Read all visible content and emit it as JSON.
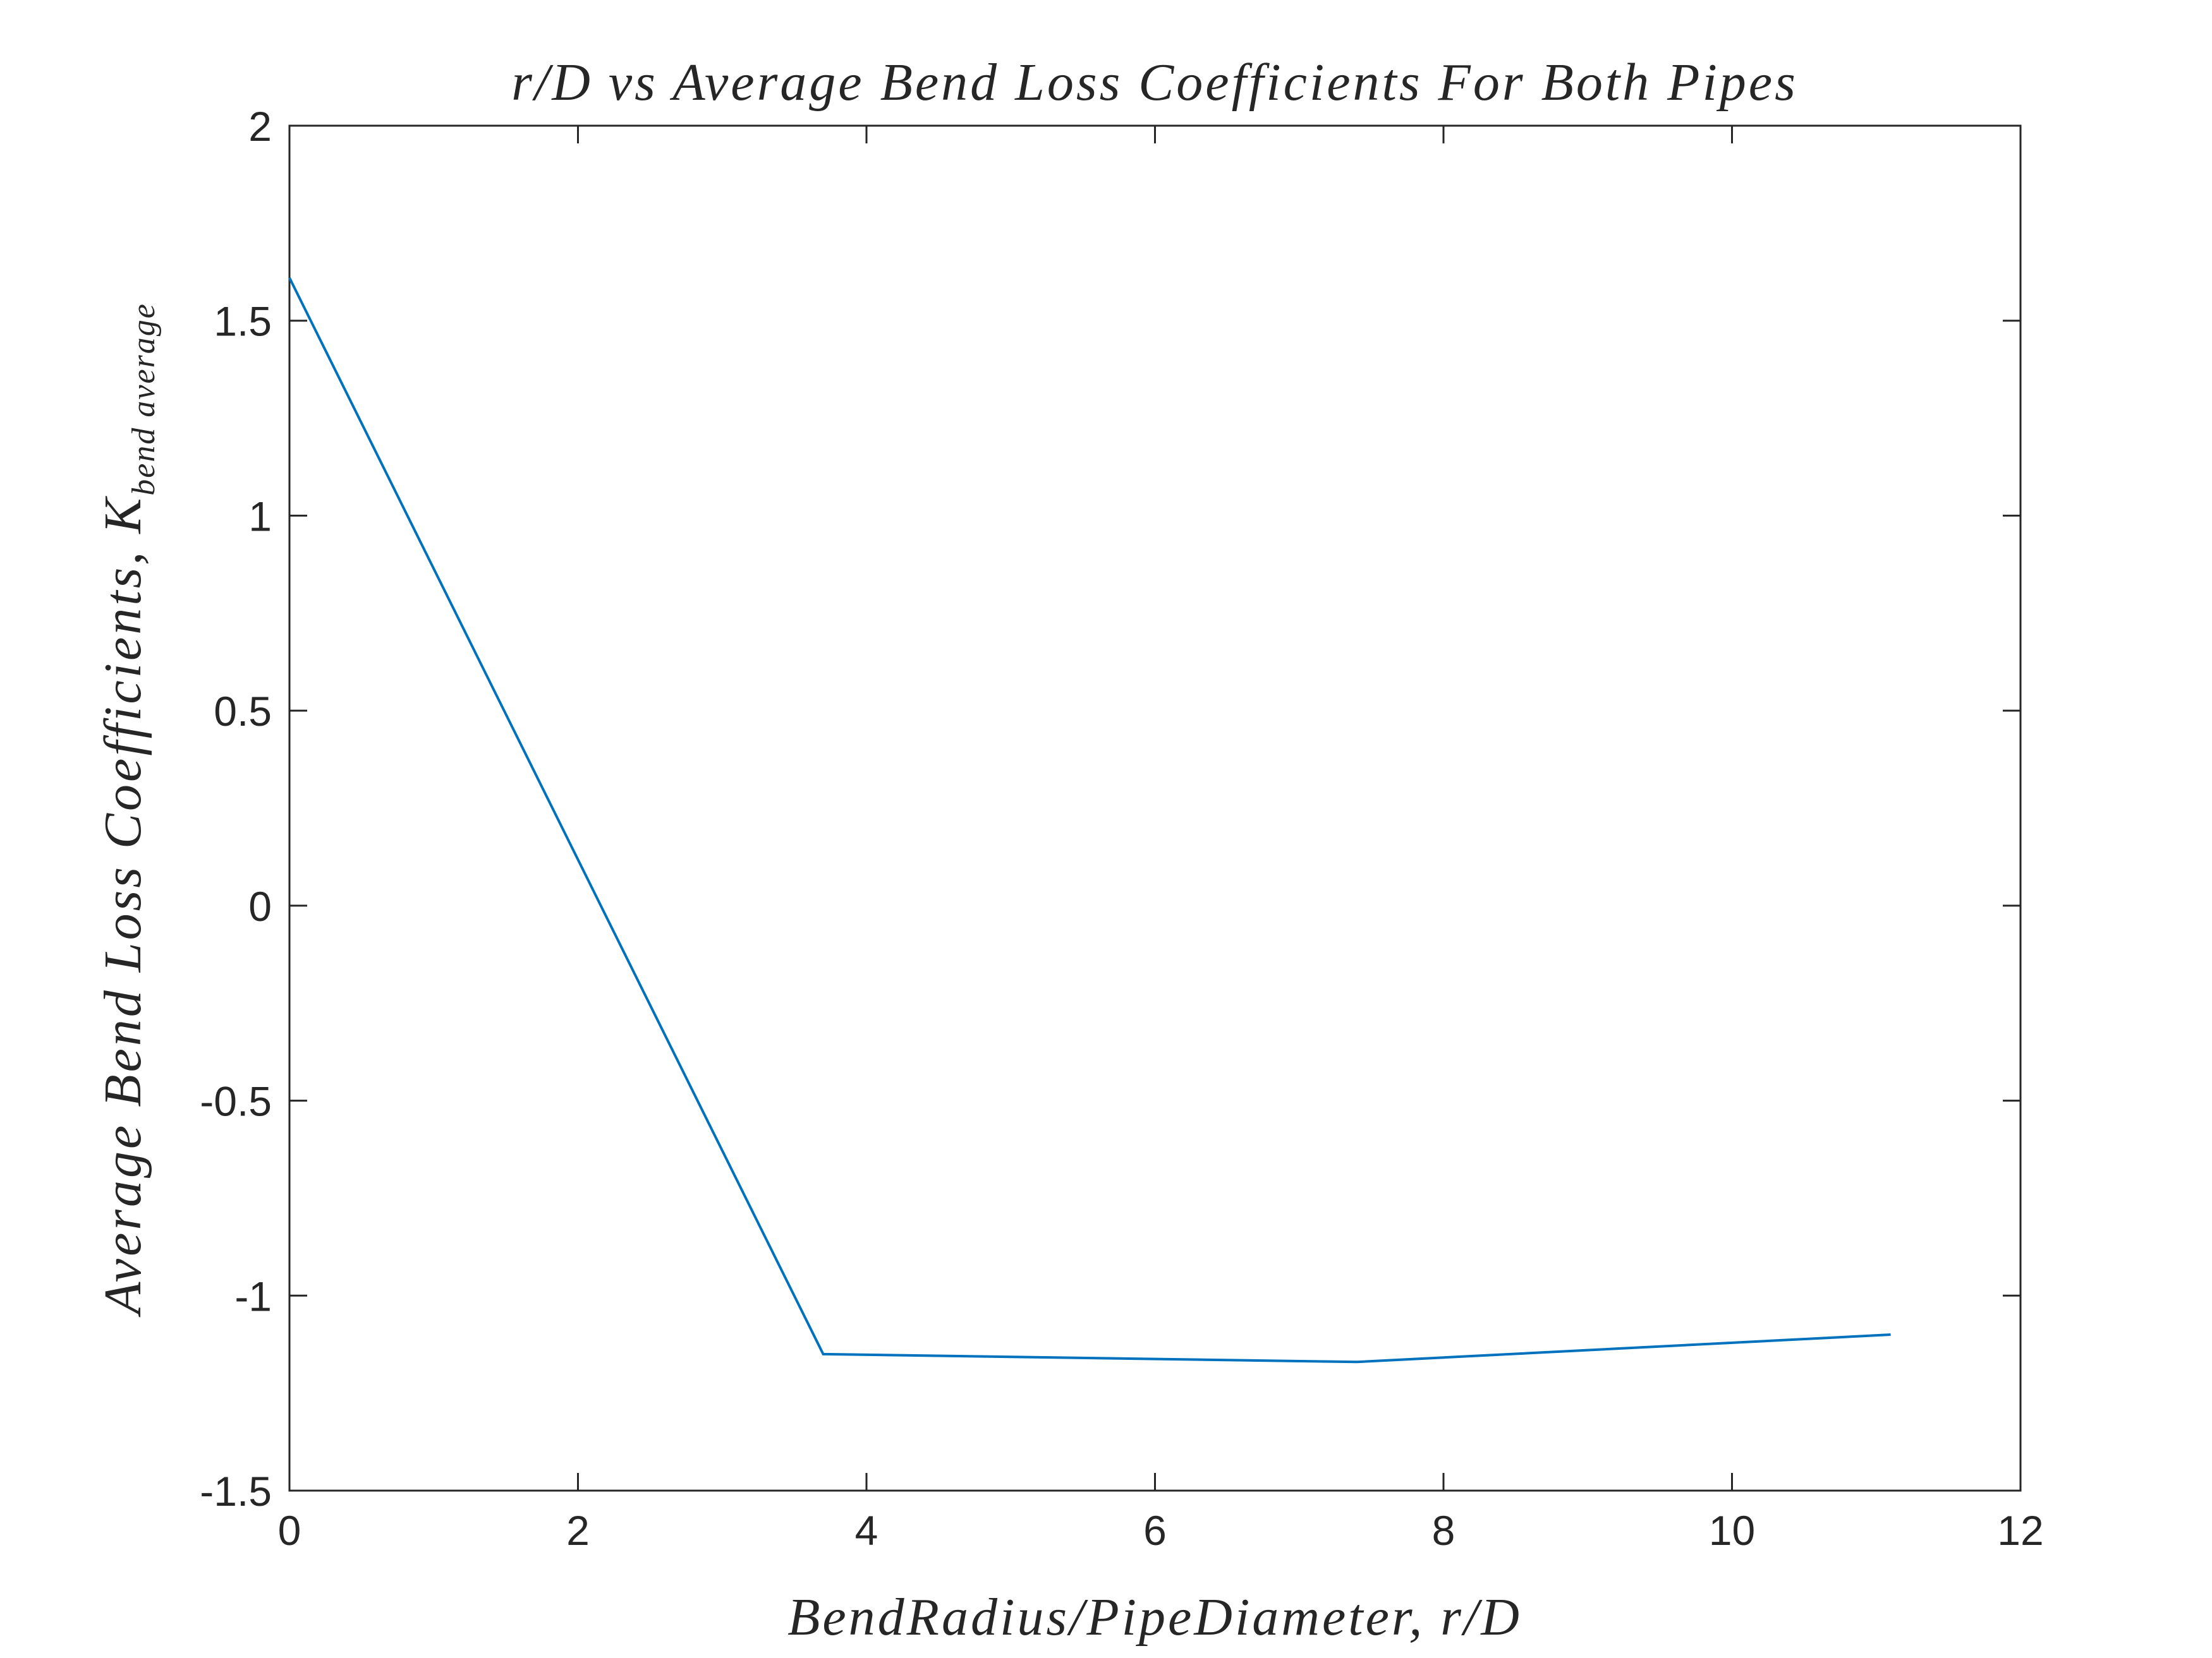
{
  "chart_data": {
    "type": "line",
    "title": "r/D vs Average Bend Loss Coefficients For Both Pipes",
    "xlabel": "BendRadius/PipeDiameter, r/D",
    "ylabel_main": "Average Bend Loss Coefficients, K",
    "ylabel_subscript": "bend average",
    "xlim": [
      0,
      12
    ],
    "ylim": [
      -1.5,
      2
    ],
    "x_ticks": [
      0,
      2,
      4,
      6,
      8,
      10,
      12
    ],
    "x_tick_labels": [
      "0",
      "2",
      "4",
      "6",
      "8",
      "10",
      "12"
    ],
    "y_ticks": [
      -1.5,
      -1,
      -0.5,
      0,
      0.5,
      1,
      1.5,
      2
    ],
    "y_tick_labels": [
      "-1.5",
      "-1",
      "-0.5",
      "0",
      "0.5",
      "1",
      "1.5",
      "2"
    ],
    "grid": false,
    "series": [
      {
        "x": [
          0,
          3.7,
          7.4,
          11.1
        ],
        "y": [
          1.61,
          -1.15,
          -1.17,
          -1.1
        ],
        "color": "#0072BD"
      }
    ]
  }
}
